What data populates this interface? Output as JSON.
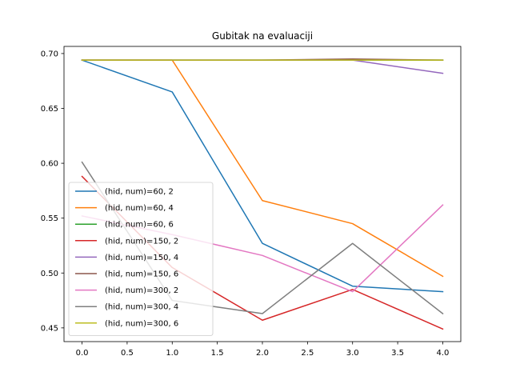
{
  "chart_data": {
    "type": "line",
    "title": "Gubitak na evaluaciji",
    "xlabel": "",
    "ylabel": "",
    "x": [
      0,
      1,
      2,
      3,
      4
    ],
    "xlim": [
      -0.2,
      4.2
    ],
    "ylim": [
      0.4375,
      0.7065
    ],
    "xticks": [
      "0.0",
      "0.5",
      "1.0",
      "1.5",
      "2.0",
      "2.5",
      "3.0",
      "3.5",
      "4.0"
    ],
    "xtick_values": [
      0,
      0.5,
      1,
      1.5,
      2,
      2.5,
      3,
      3.5,
      4
    ],
    "yticks": [
      "0.45",
      "0.50",
      "0.55",
      "0.60",
      "0.65",
      "0.70"
    ],
    "ytick_values": [
      0.45,
      0.5,
      0.55,
      0.6,
      0.65,
      0.7
    ],
    "legend_position": "lower-left",
    "grid": false,
    "series": [
      {
        "name": "(hid, num)=60, 2",
        "color": "#1f77b4",
        "values": [
          0.694,
          0.665,
          0.527,
          0.488,
          0.483
        ]
      },
      {
        "name": "(hid, num)=60, 4",
        "color": "#ff7f0e",
        "values": [
          0.694,
          0.694,
          0.566,
          0.545,
          0.497
        ]
      },
      {
        "name": "(hid, num)=60, 6",
        "color": "#2ca02c",
        "values": [
          0.694,
          0.694,
          0.694,
          0.694,
          0.694
        ]
      },
      {
        "name": "(hid, num)=150, 2",
        "color": "#d62728",
        "values": [
          0.588,
          0.505,
          0.457,
          0.485,
          0.449
        ]
      },
      {
        "name": "(hid, num)=150, 4",
        "color": "#9467bd",
        "values": [
          0.694,
          0.694,
          0.694,
          0.694,
          0.682
        ]
      },
      {
        "name": "(hid, num)=150, 6",
        "color": "#8c564b",
        "values": [
          0.694,
          0.694,
          0.694,
          0.695,
          0.694
        ]
      },
      {
        "name": "(hid, num)=300, 2",
        "color": "#e377c2",
        "values": [
          0.552,
          0.535,
          0.516,
          0.483,
          0.562
        ]
      },
      {
        "name": "(hid, num)=300, 4",
        "color": "#7f7f7f",
        "values": [
          0.601,
          0.475,
          0.463,
          0.527,
          0.463
        ]
      },
      {
        "name": "(hid, num)=300, 6",
        "color": "#bcbd22",
        "values": [
          0.694,
          0.694,
          0.694,
          0.694,
          0.694
        ]
      }
    ]
  }
}
